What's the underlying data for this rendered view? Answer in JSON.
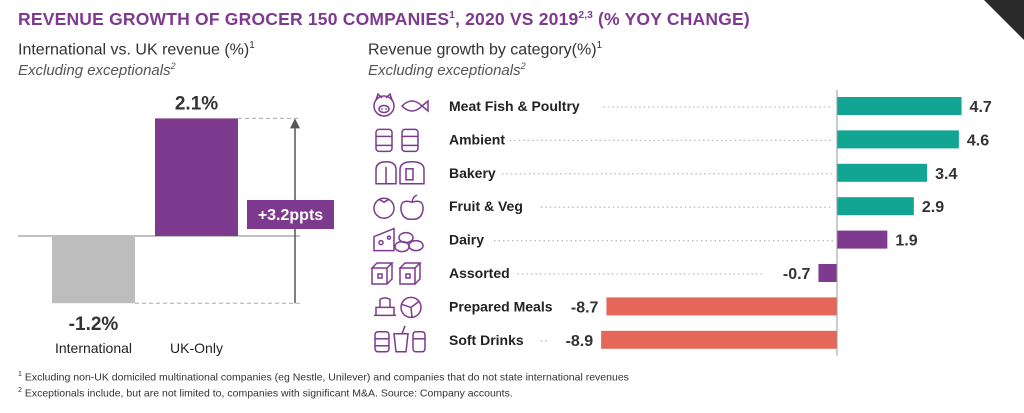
{
  "header": {
    "title": "REVENUE GROWTH OF GROCER 150 COMPANIES",
    "title_sup1": "1",
    "title_mid": ", 2020 VS 2019",
    "title_sup2": "2,3",
    "title_end": " (% YOY CHANGE)"
  },
  "left_panel": {
    "heading": "International vs. UK revenue (%)",
    "heading_sup": "1",
    "note": "Excluding exceptionals",
    "note_sup": "2",
    "gap_label": "+3.2ppts"
  },
  "right_panel": {
    "heading": "Revenue growth by category(%)",
    "heading_sup": "1",
    "note": "Excluding exceptionals",
    "note_sup": "2"
  },
  "chart_data": [
    {
      "type": "bar",
      "categories": [
        "International",
        "UK-Only"
      ],
      "values": [
        -1.2,
        2.1
      ],
      "value_labels": [
        "-1.2%",
        "2.1%"
      ],
      "colors": [
        "#bdbdbd",
        "#7d3a8e"
      ],
      "annotation": "+3.2ppts",
      "annotation_color": "#7d3a8e"
    },
    {
      "type": "bar",
      "orientation": "horizontal",
      "categories": [
        "Meat Fish & Poultry",
        "Ambient",
        "Bakery",
        "Fruit & Veg",
        "Dairy",
        "Assorted",
        "Prepared Meals",
        "Soft Drinks"
      ],
      "values": [
        4.7,
        4.6,
        3.4,
        2.9,
        1.9,
        -0.7,
        -8.7,
        -8.9
      ],
      "value_labels": [
        "4.7",
        "4.6",
        "3.4",
        "2.9",
        "1.9",
        "-0.7",
        "-8.7",
        "-8.9"
      ],
      "colors": [
        "#13a593",
        "#13a593",
        "#13a593",
        "#13a593",
        "#7d3a8e",
        "#7d3a8e",
        "#e4675a",
        "#e4675a"
      ],
      "icons": [
        "pig-fish-icon",
        "cans-icon",
        "bread-icon",
        "fruit-icon",
        "cheese-eggs-icon",
        "boxes-icon",
        "meal-icon",
        "drinks-icon"
      ]
    }
  ],
  "footnotes": {
    "note1_sup": "1",
    "note1": " Excluding non-UK domiciled multinational companies (eg Nestle, Unilever) and companies that do not state international revenues",
    "note2_sup": "2",
    "note2": " Exceptionals include, but are not limited to, companies with significant M&A. Source: Company accounts."
  },
  "colors": {
    "accent": "#7d3a8e",
    "teal": "#13a593",
    "coral": "#e4675a",
    "grey": "#bdbdbd"
  }
}
